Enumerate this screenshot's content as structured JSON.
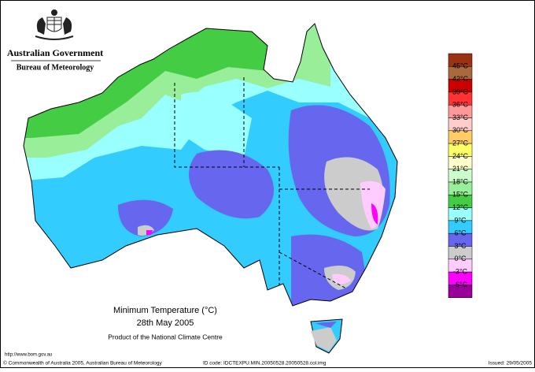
{
  "header": {
    "government": "Australian Government",
    "bureau": "Bureau of Meteorology"
  },
  "map": {
    "title": "Minimum Temperature (°C)",
    "date": "28th May 2005",
    "product": "Product of the National Climate Centre"
  },
  "legend": {
    "labels": [
      "45°C",
      "42°C",
      "39°C",
      "36°C",
      "33°C",
      "30°C",
      "27°C",
      "24°C",
      "21°C",
      "18°C",
      "15°C",
      "12°C",
      "9°C",
      "6°C",
      "3°C",
      "0°C",
      "-3°C",
      "-6°C"
    ],
    "colors": [
      "#993311",
      "#a86a3c",
      "#cc0000",
      "#ff3333",
      "#ff9999",
      "#ffcccc",
      "#ffcc66",
      "#ffff66",
      "#ffffcc",
      "#ccffcc",
      "#99ee99",
      "#44cc44",
      "#99ffff",
      "#33ccff",
      "#6666ee",
      "#cccccc",
      "#ffccff",
      "#ff00ff",
      "#990099"
    ]
  },
  "footer": {
    "url": "http://www.bom.gov.au",
    "copyright": "© Commonwealth of Australia 2005, Australian Bureau of Meteorology",
    "id_code": "ID code: IDCTEXPU.MIN.20050528.20050528.col.img",
    "issued": "Issued: 29/05/2005"
  }
}
